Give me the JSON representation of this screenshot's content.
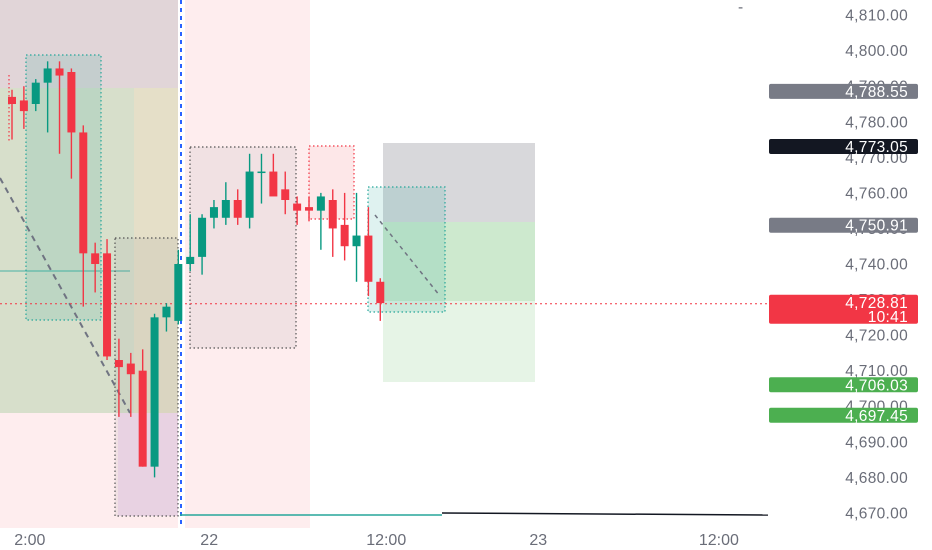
{
  "chart_data": {
    "type": "candlestick",
    "y_axis": {
      "min": 4668,
      "max": 4812,
      "ticks": [
        "4,670.00",
        "4,680.00",
        "4,690.00",
        "4,700.00",
        "4,710.00",
        "4,720.00",
        "4,730.00",
        "4,740.00",
        "4,750.00",
        "4,760.00",
        "4,770.00",
        "4,780.00",
        "4,790.00",
        "4,800.00",
        "4,810.00"
      ]
    },
    "x_axis": {
      "labels": [
        {
          "text": "2:00",
          "bar": 1.5
        },
        {
          "text": "22",
          "bar": 16.6
        },
        {
          "text": "12:00",
          "bar": 31.5
        },
        {
          "text": "23",
          "bar": 44.3
        },
        {
          "text": "12:00",
          "bar": 59.5
        }
      ]
    },
    "price_badges": [
      {
        "label": "4,788.55",
        "value": 4788.55,
        "color": "#787b86"
      },
      {
        "label": "4,773.05",
        "value": 4773.05,
        "color": "#131722"
      },
      {
        "label": "4,750.91",
        "value": 4750.91,
        "color": "#787b86"
      },
      {
        "label": "4,728.81",
        "sublabel": "10:41",
        "value": 4728.81,
        "color": "#f23645",
        "current": true
      },
      {
        "label": "4,706.03",
        "value": 4706.03,
        "color": "#4caf50"
      },
      {
        "label": "4,697.45",
        "value": 4697.45,
        "color": "#4caf50"
      }
    ],
    "candles": [
      {
        "o": 4787,
        "h": 4789,
        "l": 4775,
        "c": 4785
      },
      {
        "o": 4786,
        "h": 4790,
        "l": 4778,
        "c": 4783
      },
      {
        "o": 4785,
        "h": 4792,
        "l": 4783,
        "c": 4791
      },
      {
        "o": 4791,
        "h": 4797,
        "l": 4777,
        "c": 4795
      },
      {
        "o": 4795,
        "h": 4797,
        "l": 4771,
        "c": 4793
      },
      {
        "o": 4794,
        "h": 4795,
        "l": 4764,
        "c": 4777
      },
      {
        "o": 4777,
        "h": 4779,
        "l": 4728,
        "c": 4743
      },
      {
        "o": 4743,
        "h": 4746,
        "l": 4732,
        "c": 4740
      },
      {
        "o": 4743,
        "h": 4747,
        "l": 4713,
        "c": 4714
      },
      {
        "o": 4713,
        "h": 4719,
        "l": 4697,
        "c": 4711
      },
      {
        "o": 4712,
        "h": 4715,
        "l": 4697,
        "c": 4709
      },
      {
        "o": 4710,
        "h": 4716,
        "l": 4683,
        "c": 4683
      },
      {
        "o": 4683,
        "h": 4726,
        "l": 4680,
        "c": 4725
      },
      {
        "o": 4725,
        "h": 4729,
        "l": 4721,
        "c": 4728
      },
      {
        "o": 4724,
        "h": 4744,
        "l": 4723,
        "c": 4740
      },
      {
        "o": 4740,
        "h": 4754,
        "l": 4738,
        "c": 4742
      },
      {
        "o": 4742,
        "h": 4754,
        "l": 4737,
        "c": 4753
      },
      {
        "o": 4753,
        "h": 4758,
        "l": 4750,
        "c": 4756
      },
      {
        "o": 4753,
        "h": 4763,
        "l": 4751,
        "c": 4758
      },
      {
        "o": 4758,
        "h": 4761,
        "l": 4751,
        "c": 4753
      },
      {
        "o": 4753,
        "h": 4771,
        "l": 4750,
        "c": 4766
      },
      {
        "o": 4766,
        "h": 4771,
        "l": 4757,
        "c": 4766
      },
      {
        "o": 4766,
        "h": 4771,
        "l": 4760,
        "c": 4759
      },
      {
        "o": 4761,
        "h": 4766,
        "l": 4754,
        "c": 4758
      },
      {
        "o": 4757,
        "h": 4759,
        "l": 4751,
        "c": 4755
      },
      {
        "o": 4756,
        "h": 4759,
        "l": 4752,
        "c": 4755
      },
      {
        "o": 4755,
        "h": 4760,
        "l": 4744,
        "c": 4759
      },
      {
        "o": 4758,
        "h": 4761,
        "l": 4742,
        "c": 4750
      },
      {
        "o": 4751,
        "h": 4760,
        "l": 4741,
        "c": 4745
      },
      {
        "o": 4745,
        "h": 4760,
        "l": 4735,
        "c": 4748
      },
      {
        "o": 4748,
        "h": 4756,
        "l": 4731,
        "c": 4735
      },
      {
        "o": 4735,
        "h": 4736,
        "l": 4724,
        "c": 4729
      }
    ]
  }
}
